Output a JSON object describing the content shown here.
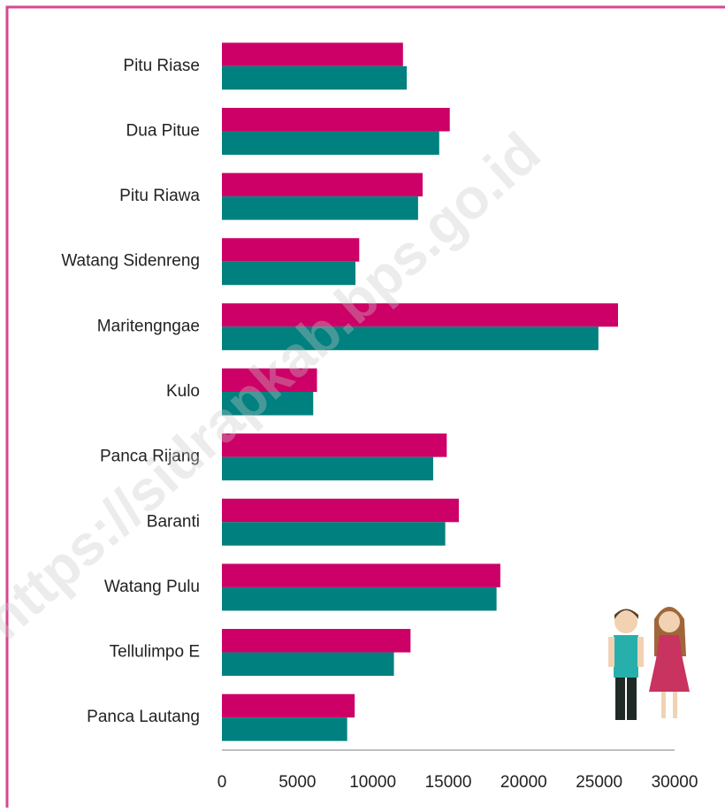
{
  "chart_data": {
    "type": "bar",
    "orientation": "horizontal",
    "watermark": "https://sidrapkab.bps.go.id",
    "categories": [
      "Pitu Riase",
      "Dua Pitue",
      "Pitu Riawa",
      "Watang Sidenreng",
      "Maritengngae",
      "Kulo",
      "Panca Rijang",
      "Baranti",
      "Watang Pulu",
      "Tellulimpo E",
      "Panca Lautang"
    ],
    "series": [
      {
        "color": "#cc0066",
        "values": [
          12000,
          15100,
          13300,
          9100,
          26250,
          6300,
          14900,
          15700,
          18450,
          12500,
          8800
        ]
      },
      {
        "color": "#00807f",
        "values": [
          12250,
          14400,
          13000,
          8850,
          24950,
          6050,
          14000,
          14800,
          18200,
          11400,
          8300
        ]
      }
    ],
    "xlim": [
      0,
      30000
    ],
    "xticks": [
      0,
      5000,
      10000,
      15000,
      20000,
      25000,
      30000
    ],
    "grid": false
  }
}
